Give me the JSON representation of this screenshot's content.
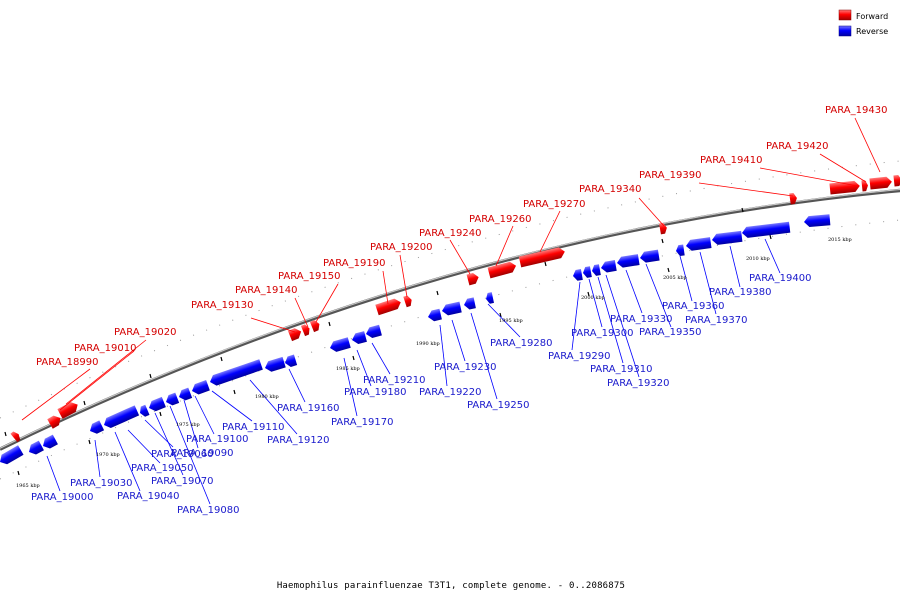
{
  "caption": "Haemophilus parainfluenzae T3T1, complete genome. - 0..2086875",
  "legend": [
    {
      "label": "Forward",
      "color": "#ff0000"
    },
    {
      "label": "Reverse",
      "color": "#0000ff"
    }
  ],
  "colors": {
    "forward": "#ff0000",
    "reverse": "#0000ff",
    "backbone": "#777777",
    "tick": "#000000",
    "label_forward": "#d40000",
    "label_reverse": "#1a1acc"
  },
  "scale_labels": [
    "1965 kbp",
    "1970 kbp",
    "1975 kbp",
    "1980 kbp",
    "1985 kbp",
    "1990 kbp",
    "1995 kbp",
    "2000 kbp",
    "2005 kbp",
    "2010 kbp",
    "2015 kbp"
  ],
  "forward_genes": [
    "PARA_18990",
    "PARA_19010",
    "PARA_19020",
    "PARA_19130",
    "PARA_19140",
    "PARA_19150",
    "PARA_19190",
    "PARA_19200",
    "PARA_19240",
    "PARA_19260",
    "PARA_19270",
    "PARA_19340",
    "PARA_19390",
    "PARA_19410",
    "PARA_19420",
    "PARA_19430"
  ],
  "reverse_genes": [
    "PARA_19000",
    "PARA_19030",
    "PARA_19040",
    "PARA_19050",
    "PARA_19060",
    "PARA_19070",
    "PARA_19080",
    "PARA_19090",
    "PARA_19100",
    "PARA_19110",
    "PARA_19120",
    "PARA_19160",
    "PARA_19170",
    "PARA_19180",
    "PARA_19210",
    "PARA_19220",
    "PARA_19230",
    "PARA_19250",
    "PARA_19280",
    "PARA_19290",
    "PARA_19300",
    "PARA_19310",
    "PARA_19320",
    "PARA_19330",
    "PARA_19350",
    "PARA_19360",
    "PARA_19370",
    "PARA_19380",
    "PARA_19400"
  ]
}
